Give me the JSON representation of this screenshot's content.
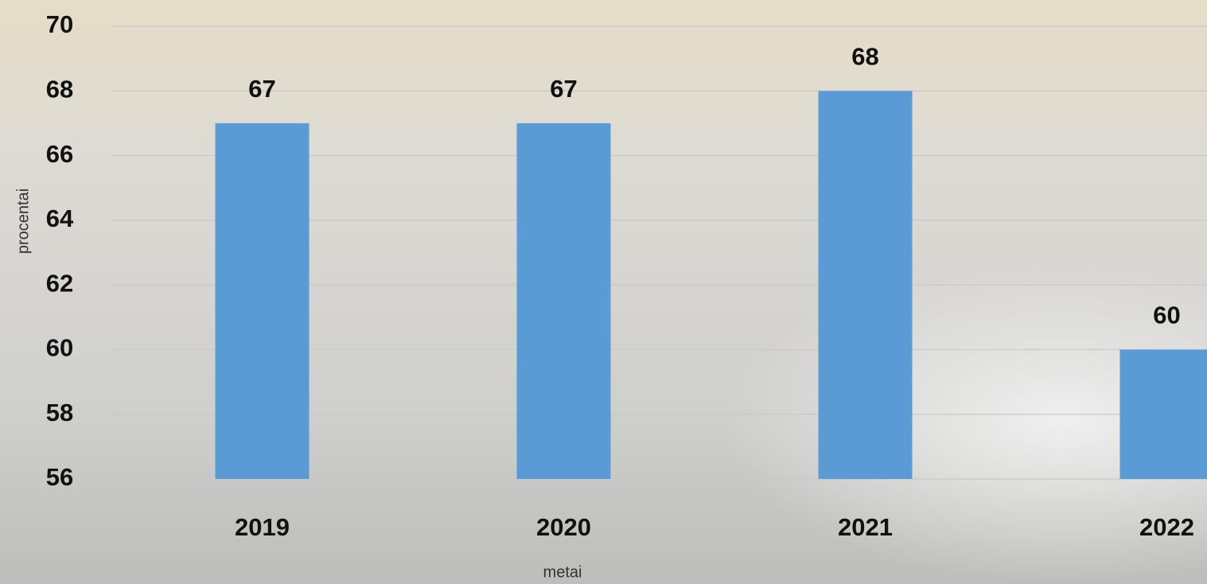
{
  "chart_data": {
    "type": "bar",
    "x_label": "metai",
    "y_label": "procentai",
    "categories": [
      "2019",
      "2020",
      "2021",
      "2022"
    ],
    "values": [
      67,
      67,
      68,
      60
    ],
    "color": "#5b9bd5",
    "ylim": [
      56,
      70
    ],
    "yticks": [
      56,
      58,
      60,
      62,
      64,
      66,
      68,
      70
    ],
    "grid": true
  }
}
